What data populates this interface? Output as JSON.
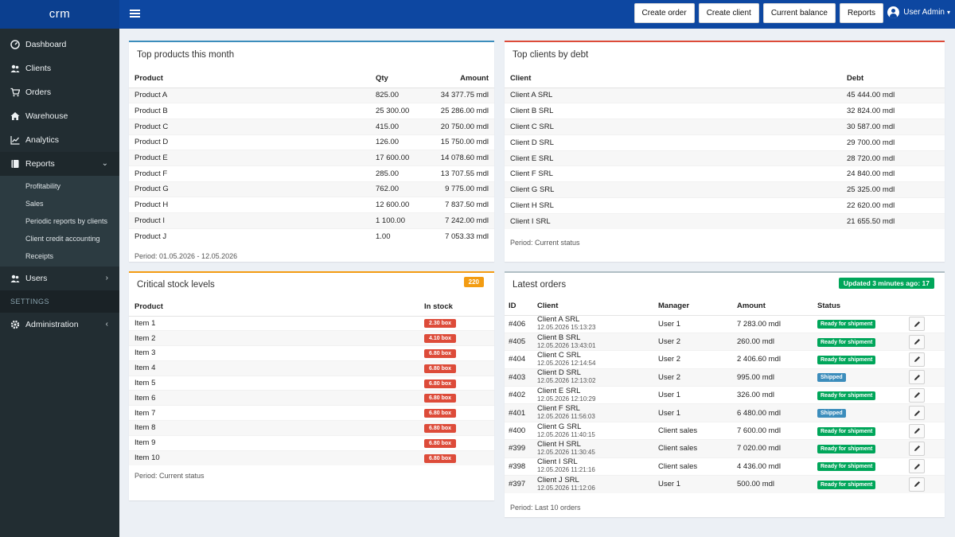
{
  "brand": "crm",
  "header": {
    "actions": [
      "Create order",
      "Create client",
      "Current balance",
      "Reports"
    ],
    "user": "User Admin"
  },
  "sidebar": {
    "items": [
      {
        "label": "Dashboard",
        "icon": "dashboard-icon"
      },
      {
        "label": "Clients",
        "icon": "users-icon"
      },
      {
        "label": "Orders",
        "icon": "cart-icon"
      },
      {
        "label": "Warehouse",
        "icon": "home-icon"
      },
      {
        "label": "Analytics",
        "icon": "chart-line-icon"
      },
      {
        "label": "Reports",
        "icon": "book-icon"
      }
    ],
    "reports_sub": [
      "Profitability",
      "Sales",
      "Periodic reports by clients",
      "Client credit accounting",
      "Receipts"
    ],
    "users": "Users",
    "settings_header": "SETTINGS",
    "administration": "Administration"
  },
  "top_products": {
    "title": "Top products this month",
    "columns": [
      "Product",
      "Qty",
      "Amount"
    ],
    "rows": [
      [
        "Product A",
        "825.00",
        "34 377.75 mdl"
      ],
      [
        "Product B",
        "25 300.00",
        "25 286.00 mdl"
      ],
      [
        "Product C",
        "415.00",
        "20 750.00 mdl"
      ],
      [
        "Product D",
        "126.00",
        "15 750.00 mdl"
      ],
      [
        "Product E",
        "17 600.00",
        "14 078.60 mdl"
      ],
      [
        "Product F",
        "285.00",
        "13 707.55 mdl"
      ],
      [
        "Product G",
        "762.00",
        "9 775.00 mdl"
      ],
      [
        "Product H",
        "12 600.00",
        "7 837.50 mdl"
      ],
      [
        "Product I",
        "1 100.00",
        "7 242.00 mdl"
      ],
      [
        "Product J",
        "1.00",
        "7 053.33 mdl"
      ]
    ],
    "footer": "Period: 01.05.2026 - 12.05.2026"
  },
  "top_clients": {
    "title": "Top clients by debt",
    "columns": [
      "Client",
      "Debt"
    ],
    "rows": [
      [
        "Client A SRL",
        "45 444.00 mdl"
      ],
      [
        "Client B SRL",
        "32 824.00 mdl"
      ],
      [
        "Client C SRL",
        "30 587.00 mdl"
      ],
      [
        "Client D SRL",
        "29 700.00 mdl"
      ],
      [
        "Client E SRL",
        "28 720.00 mdl"
      ],
      [
        "Client F SRL",
        "24 840.00 mdl"
      ],
      [
        "Client G SRL",
        "25 325.00 mdl"
      ],
      [
        "Client H SRL",
        "22 620.00 mdl"
      ],
      [
        "Client I SRL",
        "21 655.50 mdl"
      ]
    ],
    "footer": "Period: Current status"
  },
  "critical_stock": {
    "title": "Critical stock levels",
    "count": "220",
    "columns": [
      "Product",
      "In stock"
    ],
    "rows": [
      [
        "Item 1",
        "2.30 box"
      ],
      [
        "Item 2",
        "4.10 box"
      ],
      [
        "Item 3",
        "6.80 box"
      ],
      [
        "Item 4",
        "6.80 box"
      ],
      [
        "Item 5",
        "6.80 box"
      ],
      [
        "Item 6",
        "6.80 box"
      ],
      [
        "Item 7",
        "6.80 box"
      ],
      [
        "Item 8",
        "6.80 box"
      ],
      [
        "Item 9",
        "6.80 box"
      ],
      [
        "Item 10",
        "6.80 box"
      ]
    ],
    "footer": "Period: Current status"
  },
  "latest_orders": {
    "title": "Latest orders",
    "updated": "Updated 3 minutes ago: 17",
    "columns": [
      "ID",
      "Client",
      "Manager",
      "Amount",
      "Status"
    ],
    "rows": [
      {
        "id": "#406",
        "client": "Client A SRL",
        "date": "12.05.2026 15:13:23",
        "manager": "User 1",
        "amount": "7 283.00 mdl",
        "status": "Ready for shipment",
        "status_color": "green"
      },
      {
        "id": "#405",
        "client": "Client B SRL",
        "date": "12.05.2026 13:43:01",
        "manager": "User 2",
        "amount": "260.00 mdl",
        "status": "Ready for shipment",
        "status_color": "green"
      },
      {
        "id": "#404",
        "client": "Client C SRL",
        "date": "12.05.2026 12:14:54",
        "manager": "User 2",
        "amount": "2 406.60 mdl",
        "status": "Ready for shipment",
        "status_color": "green"
      },
      {
        "id": "#403",
        "client": "Client D SRL",
        "date": "12.05.2026 12:13:02",
        "manager": "User 2",
        "amount": "995.00 mdl",
        "status": "Shipped",
        "status_color": "blue"
      },
      {
        "id": "#402",
        "client": "Client E SRL",
        "date": "12.05.2026 12:10:29",
        "manager": "User 1",
        "amount": "326.00 mdl",
        "status": "Ready for shipment",
        "status_color": "green"
      },
      {
        "id": "#401",
        "client": "Client F SRL",
        "date": "12.05.2026 11:56:03",
        "manager": "User 1",
        "amount": "6 480.00 mdl",
        "status": "Shipped",
        "status_color": "blue"
      },
      {
        "id": "#400",
        "client": "Client G SRL",
        "date": "12.05.2026 11:40:15",
        "manager": "Client sales",
        "amount": "7 600.00 mdl",
        "status": "Ready for shipment",
        "status_color": "green"
      },
      {
        "id": "#399",
        "client": "Client H SRL",
        "date": "12.05.2026 11:30:45",
        "manager": "Client sales",
        "amount": "7 020.00 mdl",
        "status": "Ready for shipment",
        "status_color": "green"
      },
      {
        "id": "#398",
        "client": "Client I SRL",
        "date": "12.05.2026 11:21:16",
        "manager": "Client sales",
        "amount": "4 436.00 mdl",
        "status": "Ready for shipment",
        "status_color": "green"
      },
      {
        "id": "#397",
        "client": "Client J SRL",
        "date": "12.05.2026 11:12:06",
        "manager": "User 1",
        "amount": "500.00 mdl",
        "status": "Ready for shipment",
        "status_color": "green"
      }
    ],
    "footer": "Period: Last 10 orders"
  },
  "colors": {
    "topbar": "#0d47a1",
    "sidebar": "#222d32",
    "panel_blue": "#3c8dbc",
    "panel_red": "#dd4b39",
    "panel_orange": "#f39c12",
    "panel_gray": "#b0bec5",
    "green": "#00a65a",
    "blue": "#3c8dbc",
    "red": "#dd4b39"
  }
}
